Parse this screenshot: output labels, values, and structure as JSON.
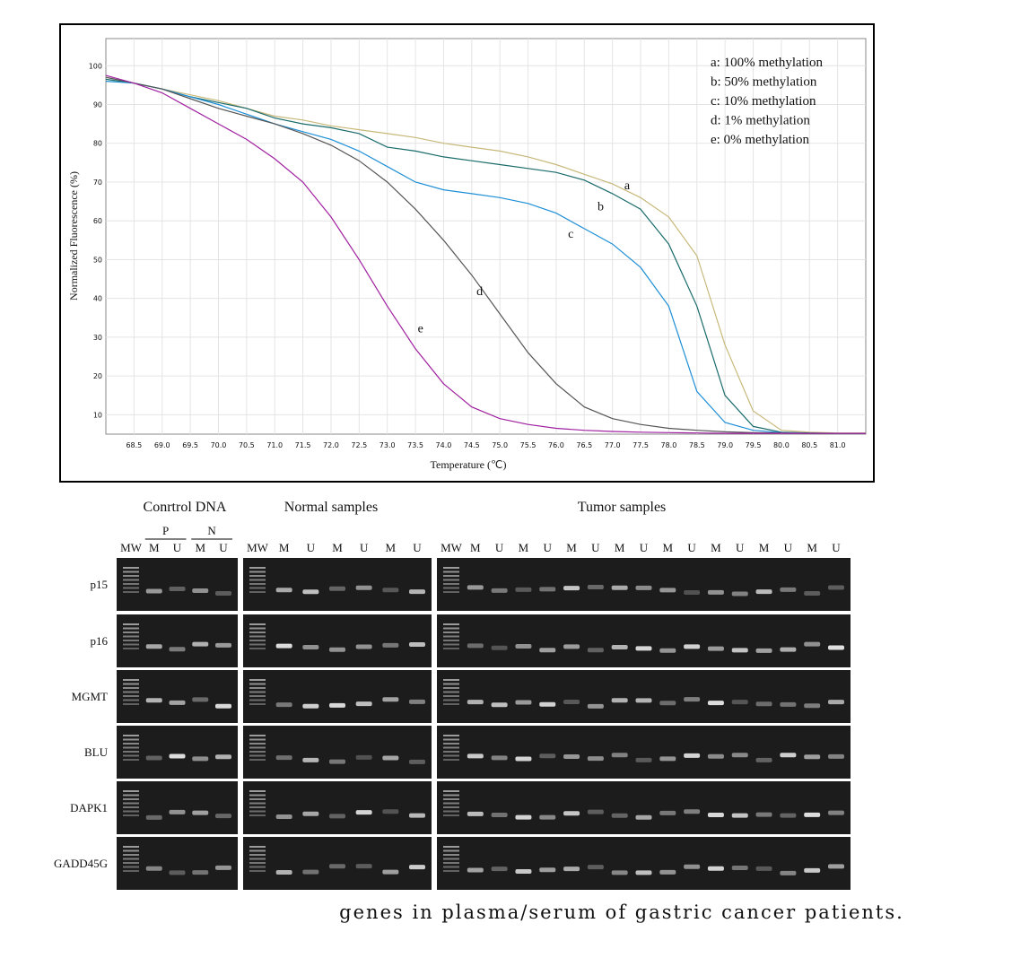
{
  "chart_data": {
    "type": "line",
    "x_label": "Temperature (℃)",
    "y_label": "Normalized Fluorescence (%)",
    "x": [
      68.0,
      68.5,
      69.0,
      69.5,
      70.0,
      70.5,
      71.0,
      71.5,
      72.0,
      72.5,
      73.0,
      73.5,
      74.0,
      74.5,
      75.0,
      75.5,
      76.0,
      76.5,
      77.0,
      77.5,
      78.0,
      78.5,
      79.0,
      79.5,
      80.0,
      80.5,
      81.0,
      81.5
    ],
    "series": [
      {
        "name": "a: 100% methylation",
        "color": "#c8b87a",
        "values": [
          97,
          95.5,
          94,
          92.5,
          91,
          89,
          87,
          86,
          84.5,
          83.5,
          82.5,
          81.5,
          80,
          79,
          78,
          76.5,
          74.5,
          72,
          69.5,
          66,
          61,
          51,
          28,
          11,
          6,
          5.5,
          5.3,
          5.3
        ]
      },
      {
        "name": "b: 50% methylation",
        "color": "#1a6b6b",
        "values": [
          96.5,
          95.5,
          94,
          92,
          90.5,
          89,
          86.5,
          85,
          84,
          82.5,
          79,
          78,
          76.5,
          75.5,
          74.5,
          73.5,
          72.5,
          70.5,
          67,
          63,
          54,
          38,
          15,
          7,
          5.5,
          5.3,
          5.2,
          5.2
        ]
      },
      {
        "name": "c: 10% methylation",
        "color": "#1e8fd6",
        "values": [
          96,
          95.5,
          94,
          92,
          90,
          87.5,
          85,
          83,
          81,
          78,
          74,
          70,
          68,
          67,
          66,
          64.5,
          62,
          58,
          54,
          48,
          38,
          16,
          8,
          6,
          5.4,
          5.2,
          5.2,
          5.2
        ]
      },
      {
        "name": "d: 1% methylation",
        "color": "#555555",
        "values": [
          97,
          95.5,
          94,
          91.5,
          89,
          87,
          85,
          82.5,
          79.5,
          75.5,
          70,
          63,
          55,
          46,
          36,
          26,
          18,
          12,
          9,
          7.5,
          6.5,
          6,
          5.6,
          5.4,
          5.3,
          5.2,
          5.2,
          5.2
        ]
      },
      {
        "name": "e: 0% methylation",
        "color": "#a020a0",
        "values": [
          97.5,
          95.5,
          93,
          89,
          85,
          81,
          76,
          70,
          61,
          50,
          38,
          27,
          18,
          12,
          9,
          7.5,
          6.5,
          6,
          5.7,
          5.5,
          5.4,
          5.3,
          5.2,
          5.2,
          5.2,
          5.2,
          5.2,
          5.2
        ]
      }
    ],
    "annotations": [
      {
        "text": "a",
        "x": 77.26,
        "y": 68.2
      },
      {
        "text": "b",
        "x": 76.79,
        "y": 62.7
      },
      {
        "text": "c",
        "x": 76.26,
        "y": 55.7
      },
      {
        "text": "d",
        "x": 74.64,
        "y": 40.9
      },
      {
        "text": "e",
        "x": 73.59,
        "y": 31.3
      }
    ],
    "xlim": [
      68.0,
      81.5
    ],
    "ylim": [
      5,
      107
    ],
    "xticks": [
      68.5,
      {
        "value": 69,
        "label": "69.0"
      },
      69.5,
      {
        "value": 70,
        "label": "70.0"
      },
      70.5,
      {
        "value": 71,
        "label": "71.0"
      },
      71.5,
      {
        "value": 72,
        "label": "72.0"
      },
      72.5,
      {
        "value": 73,
        "label": "73.0"
      },
      73.5,
      {
        "value": 74,
        "label": "74.0"
      },
      74.5,
      {
        "value": 75,
        "label": "75.0"
      },
      75.5,
      {
        "value": 76,
        "label": "76.0"
      },
      76.5,
      {
        "value": 77,
        "label": "77.0"
      },
      77.5,
      {
        "value": 78,
        "label": "78.0"
      },
      78.5,
      {
        "value": 79,
        "label": "79.0"
      },
      79.5,
      {
        "value": 80,
        "label": "80.0"
      },
      80.5,
      {
        "value": 81,
        "label": "81.0"
      }
    ],
    "yticks": [
      10,
      20,
      30,
      40,
      50,
      60,
      70,
      80,
      90,
      100
    ],
    "grid": true,
    "legend": "upper right"
  },
  "gel": {
    "groups": [
      "Conrtrol DNA",
      "Normal samples",
      "Tumor samples"
    ],
    "subgroups": [
      "P",
      "N"
    ],
    "lanes": [
      [
        "MW",
        "M",
        "U",
        "M",
        "U"
      ],
      [
        "MW",
        "M",
        "U",
        "M",
        "U",
        "M",
        "U"
      ],
      [
        "MW",
        "M",
        "U",
        "M",
        "U",
        "M",
        "U",
        "M",
        "U",
        "M",
        "U",
        "M",
        "U",
        "M",
        "U",
        "M",
        "U"
      ]
    ],
    "genes": [
      "p15",
      "p16",
      "MGMT",
      "BLU",
      "DAPK1",
      "GADD45G"
    ]
  },
  "caption": "genes in plasma/serum of gastric cancer patients."
}
